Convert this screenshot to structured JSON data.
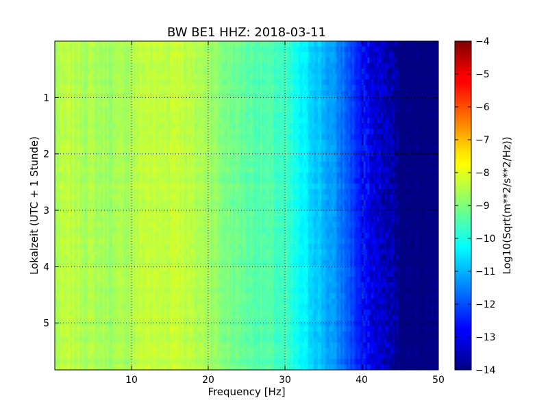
{
  "chart_data": {
    "type": "heatmap",
    "title": "BW BE1 HHZ: 2018-03-11",
    "xlabel": "Frequency [Hz]",
    "ylabel": "Lokalzeit (UTC + 1 Stunde)",
    "xlim": [
      0,
      50
    ],
    "ylim": [
      0,
      5.83
    ],
    "y_inverted": true,
    "x_ticks": [
      10,
      20,
      30,
      40,
      50
    ],
    "y_ticks": [
      1,
      2,
      3,
      4,
      5
    ],
    "grid": true,
    "colormap": "jet",
    "colorbar": {
      "label": "Log10(Sqrt(m**2/s**2/Hz))",
      "range": [
        -14,
        -4
      ],
      "ticks": [
        -4,
        -5,
        -6,
        -7,
        -8,
        -9,
        -10,
        -11,
        -12,
        -13,
        -14
      ]
    },
    "frequency_profile": {
      "frequencies": [
        0,
        2,
        5,
        8,
        10,
        12,
        14,
        16,
        18,
        20,
        22,
        25,
        28,
        30,
        32,
        34,
        36,
        38,
        40,
        41,
        42,
        43,
        44,
        45,
        50
      ],
      "log10_amplitude": [
        -8.6,
        -8.4,
        -8.6,
        -8.7,
        -8.5,
        -8.3,
        -8.4,
        -8.2,
        -8.5,
        -8.6,
        -9.0,
        -9.3,
        -9.5,
        -9.7,
        -10.3,
        -10.7,
        -11.2,
        -11.8,
        -12.6,
        -13.0,
        -13.2,
        -13.4,
        -13.6,
        -14.0,
        -14.0
      ]
    }
  }
}
